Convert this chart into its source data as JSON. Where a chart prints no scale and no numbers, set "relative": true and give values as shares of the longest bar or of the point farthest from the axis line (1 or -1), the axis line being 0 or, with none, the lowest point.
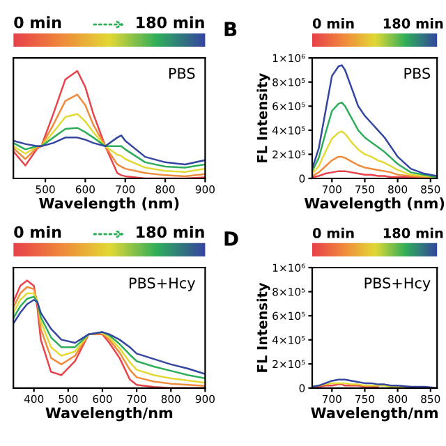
{
  "chart_data": [
    {
      "type": "line",
      "relative": true,
      "xlabel": "Wavelength (nm)",
      "xlim": [
        420,
        900
      ],
      "xticks": [
        500,
        600,
        700,
        800,
        900
      ],
      "grid": false,
      "legend": false,
      "annotations": [
        "0 min",
        "180 min",
        "PBS"
      ],
      "x": [
        420,
        450,
        480,
        490,
        520,
        550,
        580,
        600,
        620,
        650,
        680,
        690,
        700,
        750,
        800,
        850,
        900
      ],
      "series": [
        {
          "color": "#e8424a",
          "values": [
            0.25,
            0.12,
            0.28,
            0.3,
            0.6,
            0.92,
            1.0,
            0.85,
            0.6,
            0.3,
            0.05,
            0.03,
            0.02,
            0.0,
            0.0,
            0.0,
            0.01
          ]
        },
        {
          "color": "#f08a3c",
          "values": [
            0.28,
            0.18,
            0.29,
            0.3,
            0.5,
            0.72,
            0.78,
            0.68,
            0.5,
            0.3,
            0.13,
            0.11,
            0.09,
            0.05,
            0.03,
            0.02,
            0.04
          ]
        },
        {
          "color": "#e3d935",
          "values": [
            0.3,
            0.23,
            0.3,
            0.3,
            0.43,
            0.57,
            0.6,
            0.53,
            0.43,
            0.3,
            0.22,
            0.21,
            0.18,
            0.1,
            0.07,
            0.06,
            0.09
          ]
        },
        {
          "color": "#2fae5a",
          "values": [
            0.33,
            0.27,
            0.3,
            0.3,
            0.38,
            0.46,
            0.47,
            0.43,
            0.38,
            0.3,
            0.3,
            0.3,
            0.27,
            0.15,
            0.11,
            0.1,
            0.13
          ]
        },
        {
          "color": "#3446a0",
          "values": [
            0.35,
            0.32,
            0.3,
            0.3,
            0.33,
            0.38,
            0.38,
            0.36,
            0.33,
            0.3,
            0.38,
            0.4,
            0.35,
            0.2,
            0.15,
            0.13,
            0.17
          ]
        }
      ]
    },
    {
      "type": "line",
      "title": "B",
      "xlabel": "Wavelength (nm)",
      "ylabel": "FL Intensity",
      "xlim": [
        670,
        860
      ],
      "xticks": [
        700,
        750,
        800,
        850
      ],
      "ylim": [
        0,
        1000000
      ],
      "yticks": [
        0,
        {
          "value": 200000,
          "label": "2×10⁵"
        },
        {
          "value": 400000,
          "label": "4×10⁵"
        },
        {
          "value": 600000,
          "label": "6×10⁵"
        },
        {
          "value": 800000,
          "label": "8×10⁵"
        },
        {
          "value": 1000000,
          "label": "1×10⁶"
        }
      ],
      "grid": false,
      "legend": false,
      "annotations": [
        "0 min",
        "180 min",
        "PBS"
      ],
      "x": [
        670,
        680,
        690,
        700,
        710,
        715,
        720,
        730,
        740,
        750,
        760,
        770,
        780,
        790,
        800,
        820,
        840,
        860
      ],
      "series": [
        {
          "color": "#e8424a",
          "values": [
            10000,
            20000,
            40000,
            50000,
            60000,
            60000,
            60000,
            50000,
            40000,
            30000,
            30000,
            20000,
            20000,
            10000,
            10000,
            10000,
            0,
            0
          ]
        },
        {
          "color": "#f08a3c",
          "values": [
            20000,
            50000,
            100000,
            150000,
            180000,
            180000,
            170000,
            140000,
            110000,
            90000,
            80000,
            70000,
            60000,
            50000,
            30000,
            20000,
            10000,
            0
          ]
        },
        {
          "color": "#e3d935",
          "values": [
            40000,
            100000,
            220000,
            330000,
            380000,
            390000,
            370000,
            300000,
            240000,
            200000,
            180000,
            150000,
            130000,
            100000,
            70000,
            30000,
            20000,
            10000
          ]
        },
        {
          "color": "#2fae5a",
          "values": [
            60000,
            170000,
            370000,
            560000,
            620000,
            630000,
            600000,
            500000,
            400000,
            340000,
            300000,
            260000,
            220000,
            170000,
            120000,
            50000,
            30000,
            10000
          ]
        },
        {
          "color": "#3446a0",
          "values": [
            80000,
            250000,
            550000,
            850000,
            930000,
            940000,
            900000,
            750000,
            600000,
            520000,
            460000,
            400000,
            340000,
            260000,
            180000,
            80000,
            40000,
            20000
          ]
        }
      ]
    },
    {
      "type": "line",
      "relative": true,
      "xlabel": "Wavelength/nm",
      "xlim": [
        340,
        900
      ],
      "xticks": [
        400,
        500,
        600,
        700,
        800,
        900
      ],
      "grid": false,
      "legend": false,
      "annotations": [
        "0 min",
        "180 min",
        "PBS+Hcy"
      ],
      "x": [
        340,
        360,
        380,
        400,
        410,
        420,
        450,
        480,
        520,
        560,
        600,
        620,
        650,
        680,
        700,
        750,
        800,
        850,
        900
      ],
      "series": [
        {
          "color": "#e8424a",
          "values": [
            0.8,
            0.95,
            1.0,
            0.95,
            0.75,
            0.45,
            0.15,
            0.12,
            0.25,
            0.5,
            0.5,
            0.42,
            0.28,
            0.08,
            0.03,
            0.01,
            0.0,
            0.0,
            0.0
          ]
        },
        {
          "color": "#f08a3c",
          "values": [
            0.75,
            0.88,
            0.94,
            0.92,
            0.8,
            0.55,
            0.28,
            0.22,
            0.3,
            0.5,
            0.51,
            0.45,
            0.33,
            0.17,
            0.1,
            0.06,
            0.04,
            0.03,
            0.02
          ]
        },
        {
          "color": "#e3d935",
          "values": [
            0.7,
            0.82,
            0.88,
            0.88,
            0.8,
            0.62,
            0.38,
            0.3,
            0.34,
            0.5,
            0.51,
            0.47,
            0.37,
            0.24,
            0.17,
            0.12,
            0.09,
            0.07,
            0.05
          ]
        },
        {
          "color": "#2fae5a",
          "values": [
            0.65,
            0.76,
            0.83,
            0.85,
            0.8,
            0.66,
            0.47,
            0.38,
            0.38,
            0.5,
            0.52,
            0.49,
            0.41,
            0.31,
            0.25,
            0.2,
            0.16,
            0.12,
            0.09
          ]
        },
        {
          "color": "#3446a0",
          "values": [
            0.6,
            0.7,
            0.78,
            0.82,
            0.8,
            0.7,
            0.55,
            0.45,
            0.42,
            0.5,
            0.52,
            0.5,
            0.45,
            0.38,
            0.32,
            0.27,
            0.22,
            0.18,
            0.13
          ]
        }
      ]
    },
    {
      "type": "line",
      "title": "D",
      "xlabel": "Wavelength/nm",
      "ylabel": "FL Intensity",
      "xlim": [
        670,
        860
      ],
      "xticks": [
        700,
        750,
        800,
        850
      ],
      "ylim": [
        0,
        1000000
      ],
      "yticks": [
        0,
        {
          "value": 200000,
          "label": "2×10⁵"
        },
        {
          "value": 400000,
          "label": "4×10⁵"
        },
        {
          "value": 600000,
          "label": "6×10⁵"
        },
        {
          "value": 800000,
          "label": "8×10⁵"
        },
        {
          "value": 1000000,
          "label": "1×10⁶"
        }
      ],
      "grid": false,
      "legend": false,
      "annotations": [
        "0 min",
        "180 min",
        "PBS+Hcy"
      ],
      "x": [
        670,
        680,
        690,
        700,
        710,
        715,
        720,
        730,
        740,
        750,
        760,
        770,
        780,
        790,
        800,
        820,
        840,
        860
      ],
      "series": [
        {
          "color": "#e8424a",
          "values": [
            10000,
            10000,
            20000,
            20000,
            30000,
            30000,
            20000,
            20000,
            20000,
            10000,
            10000,
            10000,
            null,
            null,
            null,
            null,
            null,
            null
          ]
        },
        {
          "color": "#e3d935",
          "values": [
            10000,
            20000,
            30000,
            40000,
            40000,
            40000,
            40000,
            30000,
            30000,
            20000,
            20000,
            20000,
            20000,
            10000,
            10000,
            10000,
            null,
            null
          ]
        },
        {
          "color": "#3446a0",
          "values": [
            10000,
            20000,
            40000,
            60000,
            70000,
            70000,
            70000,
            60000,
            50000,
            40000,
            40000,
            30000,
            30000,
            20000,
            20000,
            10000,
            10000,
            0
          ]
        }
      ]
    }
  ]
}
